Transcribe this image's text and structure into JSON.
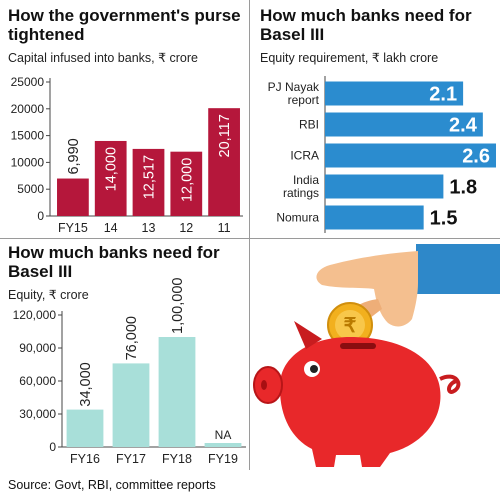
{
  "chart_data": [
    {
      "type": "bar",
      "title": "How the government's purse tightened",
      "subtitle": "Capital infused into banks, ₹ crore",
      "categories": [
        "FY15",
        "14",
        "13",
        "12",
        "11"
      ],
      "values": [
        6990,
        14000,
        12517,
        12000,
        20117
      ],
      "value_labels": [
        "6,990",
        "14,000",
        "12,517",
        "12,000",
        "20,117"
      ],
      "yticks": [
        0,
        5000,
        10000,
        15000,
        20000,
        25000
      ],
      "ytick_labels": [
        "0",
        "5000",
        "10000",
        "15000",
        "20000",
        "25000"
      ],
      "ylim": [
        0,
        25000
      ],
      "bar_color": "#b5173b",
      "grid": false
    },
    {
      "type": "bar",
      "orientation": "horizontal",
      "title": "How much banks need for Basel III",
      "subtitle": "Equity requirement, ₹ lakh crore",
      "categories": [
        "PJ Nayak report",
        "RBI",
        "ICRA",
        "India ratings",
        "Nomura"
      ],
      "category_lines": [
        [
          "PJ Nayak",
          "report"
        ],
        [
          "RBI"
        ],
        [
          "ICRA"
        ],
        [
          "India",
          "ratings"
        ],
        [
          "Nomura"
        ]
      ],
      "values": [
        2.1,
        2.4,
        2.6,
        1.8,
        1.5
      ],
      "value_labels": [
        "2.1",
        "2.4",
        "2.6",
        "1.8",
        "1.5"
      ],
      "xlim": [
        0,
        2.6
      ],
      "bar_color": "#2b8ccf",
      "grid": false
    },
    {
      "type": "bar",
      "title": "How much banks need for Basel III",
      "subtitle": "Equity, ₹ crore",
      "categories": [
        "FY16",
        "FY17",
        "FY18",
        "FY19"
      ],
      "values": [
        34000,
        76000,
        100000,
        null
      ],
      "value_labels": [
        "34,000",
        "76,000",
        "1,00,000",
        "NA"
      ],
      "yticks": [
        0,
        30000,
        60000,
        90000,
        120000
      ],
      "ytick_labels": [
        "0",
        "30,000",
        "60,000",
        "90,000",
        "120,000"
      ],
      "ylim": [
        0,
        120000
      ],
      "bar_color": "#a8dfd9",
      "grid": false
    }
  ],
  "source": "Source: Govt, RBI, committee reports",
  "illustration": {
    "piggy_color": "#e8282a",
    "coin_color": "#f2b01e",
    "sleeve_color": "#2e88c9",
    "hand_color": "#f4bf8f",
    "coin_symbol": "₹"
  }
}
